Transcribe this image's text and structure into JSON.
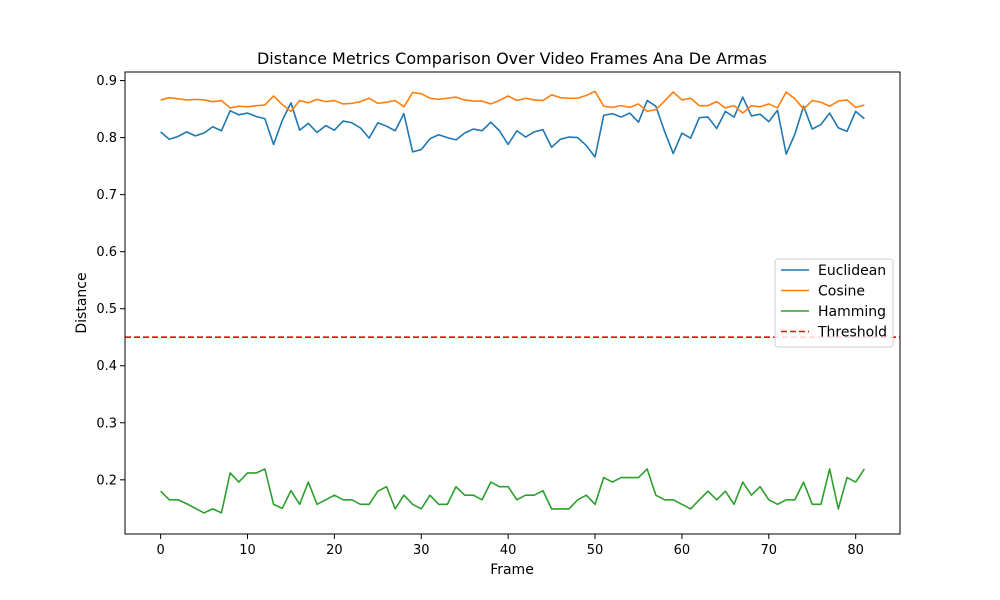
{
  "chart_data": {
    "type": "line",
    "title": "Distance Metrics Comparison Over Video Frames Ana De Armas",
    "xlabel": "Frame",
    "ylabel": "Distance",
    "xlim": [
      -4.1,
      85.1
    ],
    "ylim": [
      0.105,
      0.915
    ],
    "xticks": [
      0,
      10,
      20,
      30,
      40,
      50,
      60,
      70,
      80
    ],
    "yticks": [
      0.2,
      0.3,
      0.4,
      0.5,
      0.6,
      0.7,
      0.8,
      0.9
    ],
    "grid": false,
    "legend_position": "center-right",
    "x": [
      0,
      1,
      2,
      3,
      4,
      5,
      6,
      7,
      8,
      9,
      10,
      11,
      12,
      13,
      14,
      15,
      16,
      17,
      18,
      19,
      20,
      21,
      22,
      23,
      24,
      25,
      26,
      27,
      28,
      29,
      30,
      31,
      32,
      33,
      34,
      35,
      36,
      37,
      38,
      39,
      40,
      41,
      42,
      43,
      44,
      45,
      46,
      47,
      48,
      49,
      50,
      51,
      52,
      53,
      54,
      55,
      56,
      57,
      58,
      59,
      60,
      61,
      62,
      63,
      64,
      65,
      66,
      67,
      68,
      69,
      70,
      71,
      72,
      73,
      74,
      75,
      76,
      77,
      78,
      79,
      80,
      81
    ],
    "series": [
      {
        "name": "Euclidean",
        "color": "#1f77b4",
        "style": "solid",
        "values": [
          0.81,
          0.797,
          0.802,
          0.81,
          0.803,
          0.808,
          0.819,
          0.812,
          0.847,
          0.84,
          0.843,
          0.837,
          0.833,
          0.788,
          0.83,
          0.861,
          0.813,
          0.825,
          0.809,
          0.821,
          0.813,
          0.829,
          0.826,
          0.817,
          0.799,
          0.826,
          0.82,
          0.812,
          0.842,
          0.775,
          0.779,
          0.798,
          0.805,
          0.8,
          0.796,
          0.808,
          0.815,
          0.812,
          0.827,
          0.812,
          0.788,
          0.812,
          0.801,
          0.81,
          0.814,
          0.783,
          0.797,
          0.801,
          0.8,
          0.786,
          0.766,
          0.839,
          0.842,
          0.836,
          0.843,
          0.827,
          0.865,
          0.855,
          0.811,
          0.772,
          0.808,
          0.799,
          0.835,
          0.836,
          0.816,
          0.846,
          0.836,
          0.871,
          0.838,
          0.841,
          0.828,
          0.848,
          0.771,
          0.806,
          0.855,
          0.815,
          0.823,
          0.843,
          0.817,
          0.811,
          0.846,
          0.833
        ]
      },
      {
        "name": "Cosine",
        "color": "#ff7f0e",
        "style": "solid",
        "values": [
          0.866,
          0.87,
          0.868,
          0.866,
          0.867,
          0.866,
          0.863,
          0.865,
          0.852,
          0.855,
          0.854,
          0.856,
          0.857,
          0.873,
          0.858,
          0.846,
          0.865,
          0.861,
          0.867,
          0.863,
          0.865,
          0.859,
          0.86,
          0.863,
          0.869,
          0.86,
          0.862,
          0.865,
          0.854,
          0.879,
          0.877,
          0.869,
          0.867,
          0.869,
          0.871,
          0.866,
          0.864,
          0.864,
          0.859,
          0.865,
          0.873,
          0.865,
          0.869,
          0.866,
          0.865,
          0.875,
          0.87,
          0.869,
          0.869,
          0.874,
          0.881,
          0.855,
          0.853,
          0.856,
          0.853,
          0.859,
          0.846,
          0.849,
          0.864,
          0.88,
          0.866,
          0.869,
          0.856,
          0.856,
          0.863,
          0.852,
          0.856,
          0.843,
          0.856,
          0.854,
          0.859,
          0.852,
          0.88,
          0.868,
          0.85,
          0.865,
          0.862,
          0.855,
          0.864,
          0.866,
          0.853,
          0.857
        ]
      },
      {
        "name": "Hamming",
        "color": "#2ca02c",
        "style": "solid",
        "values": [
          0.18,
          0.165,
          0.165,
          0.158,
          0.15,
          0.142,
          0.149,
          0.142,
          0.212,
          0.196,
          0.212,
          0.212,
          0.219,
          0.157,
          0.15,
          0.181,
          0.157,
          0.196,
          0.157,
          0.165,
          0.173,
          0.165,
          0.165,
          0.157,
          0.157,
          0.18,
          0.188,
          0.149,
          0.173,
          0.157,
          0.149,
          0.173,
          0.157,
          0.157,
          0.188,
          0.173,
          0.173,
          0.165,
          0.196,
          0.188,
          0.188,
          0.165,
          0.173,
          0.173,
          0.181,
          0.149,
          0.149,
          0.149,
          0.165,
          0.173,
          0.157,
          0.204,
          0.196,
          0.204,
          0.204,
          0.204,
          0.219,
          0.173,
          0.165,
          0.165,
          0.157,
          0.149,
          0.165,
          0.18,
          0.165,
          0.18,
          0.157,
          0.196,
          0.173,
          0.188,
          0.165,
          0.157,
          0.165,
          0.165,
          0.196,
          0.157,
          0.157,
          0.219,
          0.149,
          0.204,
          0.196,
          0.219
        ]
      }
    ],
    "threshold": {
      "name": "Threshold",
      "value": 0.45,
      "color": "#ff0000",
      "style": "dashed"
    }
  }
}
